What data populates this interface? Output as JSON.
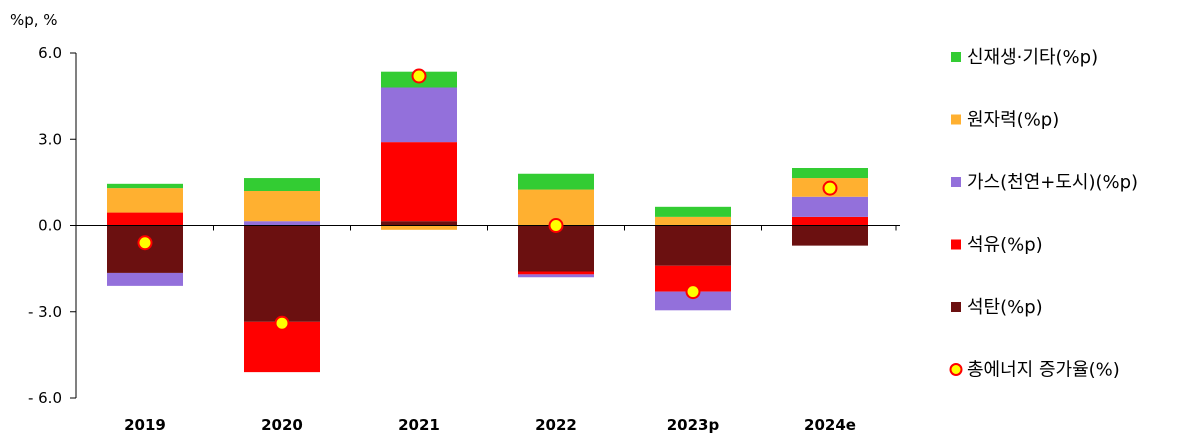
{
  "chart_data": {
    "type": "bar",
    "stacked": true,
    "unit_label": "%p, %",
    "categories": [
      "2019",
      "2020",
      "2021",
      "2022",
      "2023p",
      "2024e"
    ],
    "ylim": [
      -6.0,
      6.0
    ],
    "yticks": [
      "6.0",
      "3.0",
      "0.0",
      "- 3.0",
      "- 6.0"
    ],
    "ytick_values": [
      6.0,
      3.0,
      0.0,
      -3.0,
      -6.0
    ],
    "series": [
      {
        "name": "석탄(%p)",
        "color": "#6b1010",
        "values": [
          -1.65,
          -3.35,
          0.15,
          -1.6,
          -1.4,
          -0.7
        ]
      },
      {
        "name": "석유(%p)",
        "color": "#ff0000",
        "values": [
          0.45,
          -1.75,
          2.75,
          -0.1,
          -0.9,
          0.3
        ]
      },
      {
        "name": "가스(천연+도시)(%p)",
        "color": "#9370db",
        "values": [
          -0.45,
          0.15,
          1.9,
          -0.1,
          -0.65,
          0.7
        ]
      },
      {
        "name": "원자력(%p)",
        "color": "#ffb030",
        "values": [
          0.85,
          1.05,
          -0.15,
          1.25,
          0.3,
          0.65
        ]
      },
      {
        "name": "신재생·기타(%p)",
        "color": "#33cc33",
        "values": [
          0.15,
          0.45,
          0.55,
          0.55,
          0.35,
          0.35
        ]
      }
    ],
    "total": {
      "name": "총에너지 증가율(%)",
      "values": [
        -0.6,
        -3.4,
        5.2,
        0.0,
        -2.3,
        1.3
      ]
    },
    "legend": {
      "position": "right",
      "order": [
        "신재생·기타(%p)",
        "원자력(%p)",
        "가스(천연+도시)(%p)",
        "석유(%p)",
        "석탄(%p)",
        "총에너지 증가율(%)"
      ]
    },
    "grid": false
  }
}
